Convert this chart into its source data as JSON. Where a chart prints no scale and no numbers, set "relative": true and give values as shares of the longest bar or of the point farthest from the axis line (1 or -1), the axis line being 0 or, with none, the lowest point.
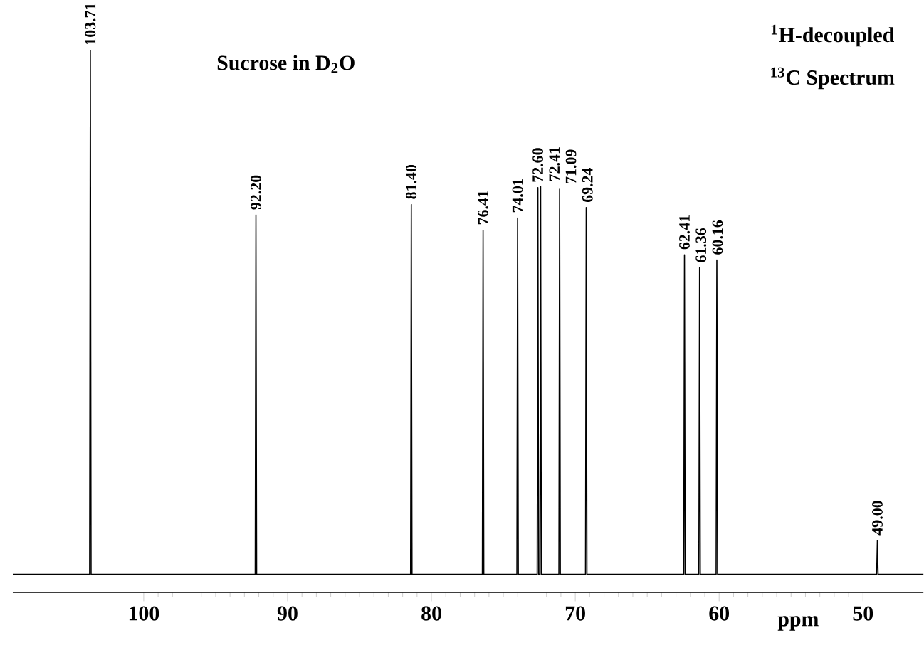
{
  "chart_data": {
    "type": "line",
    "relative": true,
    "xlabel": "ppm",
    "x": [
      109.1,
      103.76,
      103.71,
      103.66,
      92.25,
      92.2,
      92.15,
      81.45,
      81.4,
      81.35,
      76.46,
      76.41,
      76.36,
      74.06,
      74.01,
      73.96,
      72.65,
      72.6,
      72.55,
      72.46,
      72.41,
      72.36,
      71.14,
      71.09,
      71.04,
      69.29,
      69.24,
      69.19,
      62.46,
      62.41,
      62.36,
      61.41,
      61.36,
      61.31,
      60.21,
      60.16,
      60.11,
      49.05,
      49.0,
      48.95,
      45.8
    ],
    "values": [
      0,
      0,
      1.0,
      0,
      0,
      0.686,
      0,
      0,
      0.706,
      0,
      0,
      0.657,
      0,
      0,
      0.68,
      0,
      0,
      0.738,
      0,
      0,
      0.74,
      0,
      0,
      0.735,
      0,
      0,
      0.7,
      0,
      0,
      0.61,
      0,
      0,
      0.585,
      0,
      0,
      0.6,
      0,
      0,
      0.065,
      0,
      0
    ],
    "color": "#000000",
    "xlim": [
      109.1,
      45.8
    ],
    "xticks": [
      100,
      90,
      80,
      70,
      60,
      50
    ],
    "annotations": [
      {
        "text": "103.71",
        "x": 103.71,
        "y": 1.0
      },
      {
        "text": "92.20",
        "x": 92.2,
        "y": 0.686
      },
      {
        "text": "81.40",
        "x": 81.4,
        "y": 0.706
      },
      {
        "text": "76.41",
        "x": 76.41,
        "y": 0.657
      },
      {
        "text": "74.01",
        "x": 74.01,
        "y": 0.68
      },
      {
        "text": "72.60",
        "x": 72.6,
        "y": 0.738
      },
      {
        "text": "72.41",
        "x": 72.41,
        "y": 0.74
      },
      {
        "text": "71.09",
        "x": 71.09,
        "y": 0.735
      },
      {
        "text": "69.24",
        "x": 69.24,
        "y": 0.7
      },
      {
        "text": "62.41",
        "x": 62.41,
        "y": 0.61
      },
      {
        "text": "61.36",
        "x": 61.36,
        "y": 0.585
      },
      {
        "text": "60.16",
        "x": 60.16,
        "y": 0.6
      },
      {
        "text": "49.00",
        "x": 49.0,
        "y": 0.065
      },
      "**Sucrose in D$_{2}$O**",
      "**$^{1}$H-decoupled**",
      "**$^{13}$C  Spectrum**"
    ]
  }
}
